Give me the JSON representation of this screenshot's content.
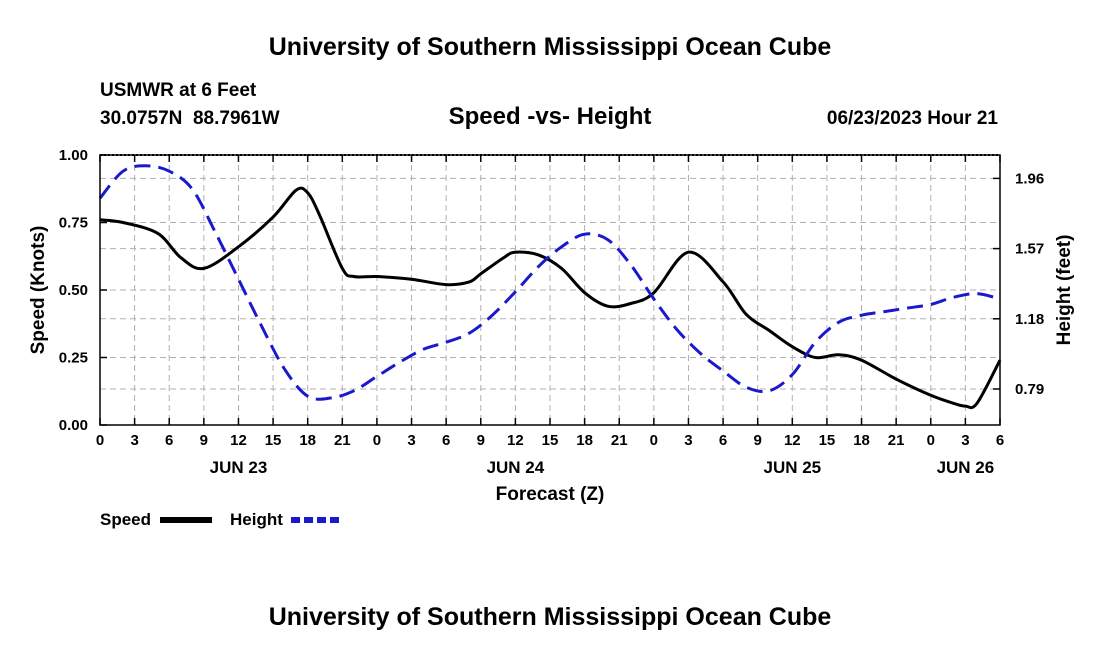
{
  "page": {
    "title_top": "University of Southern Mississippi Ocean Cube",
    "title_bottom": "University of Southern Mississippi Ocean Cube"
  },
  "station": {
    "name": "USMWR at 6 Feet",
    "coords": "30.0757N  88.7961W",
    "datetime": "06/23/2023 Hour 21"
  },
  "chart_data": {
    "type": "line",
    "title": "Speed -vs- Height",
    "xlabel": "Forecast (Z)",
    "ylabel": "Speed (Knots)",
    "y2label": "Height (feet)",
    "x_hours_range": [
      0,
      78
    ],
    "x_tick_hours": [
      0,
      3,
      6,
      9,
      12,
      15,
      18,
      21,
      24,
      27,
      30,
      33,
      36,
      39,
      42,
      45,
      48,
      51,
      54,
      57,
      60,
      63,
      66,
      69,
      72,
      75,
      78
    ],
    "x_tick_labels": [
      "0",
      "3",
      "6",
      "9",
      "12",
      "15",
      "18",
      "21",
      "0",
      "3",
      "6",
      "9",
      "12",
      "15",
      "18",
      "21",
      "0",
      "3",
      "6",
      "9",
      "12",
      "15",
      "18",
      "21",
      "0",
      "3",
      "6"
    ],
    "day_labels": [
      {
        "hour": 12,
        "label": "JUN 23"
      },
      {
        "hour": 36,
        "label": "JUN 24"
      },
      {
        "hour": 60,
        "label": "JUN 25"
      },
      {
        "hour": 75,
        "label": "JUN 26"
      }
    ],
    "ylim": [
      0,
      1.0
    ],
    "y_ticks": [
      0,
      0.25,
      0.5,
      0.75,
      1.0
    ],
    "y_tick_labels": [
      "0.00",
      "0.25",
      "0.50",
      "0.75",
      "1.00"
    ],
    "y2lim": [
      0.59,
      2.09
    ],
    "y2_ticks": [
      0.79,
      1.18,
      1.57,
      1.96
    ],
    "y2_tick_labels": [
      "0.79",
      "1.18",
      "1.57",
      "1.96"
    ],
    "grid": true,
    "series": [
      {
        "name": "Speed",
        "axis": "left",
        "color": "#000000",
        "dash": "solid",
        "x": [
          0,
          2,
          5,
          7,
          9,
          12,
          15,
          17,
          18,
          19,
          21,
          22,
          24,
          27,
          30,
          32,
          33,
          35,
          36,
          38,
          40,
          42,
          44,
          46,
          48,
          51,
          54,
          56,
          58,
          60,
          62,
          64,
          66,
          69,
          72,
          74,
          75,
          76,
          78
        ],
        "y": [
          0.76,
          0.75,
          0.71,
          0.62,
          0.58,
          0.66,
          0.77,
          0.87,
          0.86,
          0.78,
          0.58,
          0.55,
          0.55,
          0.54,
          0.52,
          0.53,
          0.56,
          0.62,
          0.64,
          0.63,
          0.58,
          0.49,
          0.44,
          0.45,
          0.49,
          0.64,
          0.53,
          0.41,
          0.35,
          0.29,
          0.25,
          0.26,
          0.24,
          0.17,
          0.11,
          0.08,
          0.07,
          0.08,
          0.24
        ]
      },
      {
        "name": "Height",
        "axis": "right",
        "color": "#1a1acc",
        "dash": "dashed",
        "x": [
          0,
          2,
          4,
          6,
          8,
          10,
          12,
          14,
          16,
          18,
          20,
          22,
          24,
          26,
          28,
          30,
          32,
          34,
          36,
          38,
          40,
          42,
          44,
          46,
          48,
          50,
          52,
          54,
          56,
          58,
          60,
          62,
          64,
          66,
          68,
          70,
          72,
          74,
          76,
          78
        ],
        "y": [
          1.85,
          2.0,
          2.03,
          2.0,
          1.9,
          1.66,
          1.4,
          1.14,
          0.9,
          0.75,
          0.74,
          0.78,
          0.86,
          0.94,
          1.01,
          1.05,
          1.1,
          1.2,
          1.33,
          1.47,
          1.58,
          1.65,
          1.62,
          1.48,
          1.29,
          1.12,
          0.99,
          0.89,
          0.8,
          0.78,
          0.87,
          1.05,
          1.16,
          1.2,
          1.22,
          1.24,
          1.26,
          1.3,
          1.32,
          1.29
        ]
      }
    ]
  },
  "legend": {
    "speed_label": "Speed",
    "height_label": "Height"
  }
}
